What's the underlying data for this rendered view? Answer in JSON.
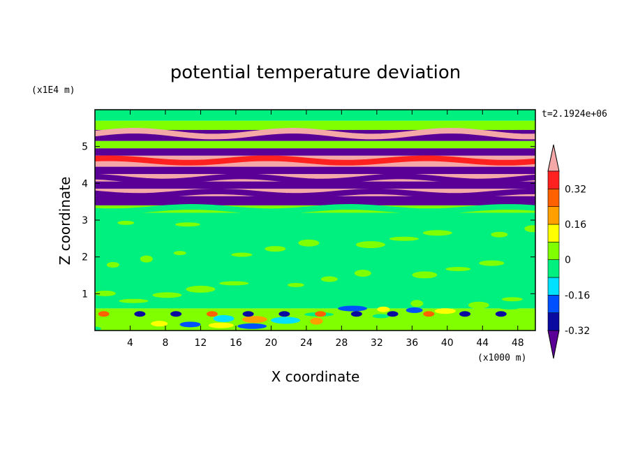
{
  "chart_data": {
    "type": "heatmap",
    "title": "potential temperature deviation",
    "xlabel": "X coordinate",
    "ylabel": "Z coordinate",
    "x_unit": "(x1000 m)",
    "y_unit": "(x1E4 m)",
    "time_label": "t=2.1924e+06",
    "xlim": [
      0,
      50
    ],
    "ylim": [
      0,
      6
    ],
    "x_ticks": [
      4,
      8,
      12,
      16,
      20,
      24,
      28,
      32,
      36,
      40,
      44,
      48
    ],
    "y_ticks": [
      1,
      2,
      3,
      4,
      5
    ],
    "colorbar": {
      "levels": [
        -0.4,
        -0.32,
        -0.24,
        -0.16,
        -0.08,
        0,
        0.08,
        0.16,
        0.24,
        0.32,
        0.4
      ],
      "tick_labels": [
        "0.32",
        "0.16",
        "0",
        "-0.16",
        "-0.32"
      ],
      "tick_values": [
        0.32,
        0.16,
        0,
        -0.16,
        -0.32
      ],
      "colors": [
        "#5a0096",
        "#0a0aa0",
        "#0050ff",
        "#00e0ff",
        "#00f080",
        "#80ff00",
        "#ffff00",
        "#ffa000",
        "#ff6000",
        "#ff2020",
        "#f4a8a8"
      ],
      "extend": "both"
    },
    "bands": [
      {
        "z": [
          5.7,
          6.0
        ],
        "level": "#00f080"
      },
      {
        "z": [
          5.45,
          5.7
        ],
        "level": "#80ff00"
      },
      {
        "z": [
          5.15,
          5.45
        ],
        "level": "#5a0096"
      },
      {
        "z": [
          4.95,
          5.15
        ],
        "level": "#80ff00"
      },
      {
        "z": [
          4.75,
          4.95
        ],
        "level": "#5a0096"
      },
      {
        "z": [
          4.45,
          4.75
        ],
        "level": "#f4a8a8"
      },
      {
        "z": [
          4.25,
          4.45
        ],
        "level": "#5a0096"
      },
      {
        "z": [
          4.05,
          4.25
        ],
        "level": "#f4a8a8"
      },
      {
        "z": [
          3.85,
          4.05
        ],
        "level": "#5a0096"
      },
      {
        "z": [
          3.65,
          3.85
        ],
        "level": "#f4a8a8"
      },
      {
        "z": [
          3.4,
          3.65
        ],
        "level": "#5a0096"
      },
      {
        "z": [
          3.2,
          3.4
        ],
        "level": "#80ff00"
      },
      {
        "z": [
          0.6,
          3.2
        ],
        "level": "#00f080"
      },
      {
        "z": [
          0.0,
          0.6
        ],
        "level": "#80ff00"
      }
    ]
  }
}
